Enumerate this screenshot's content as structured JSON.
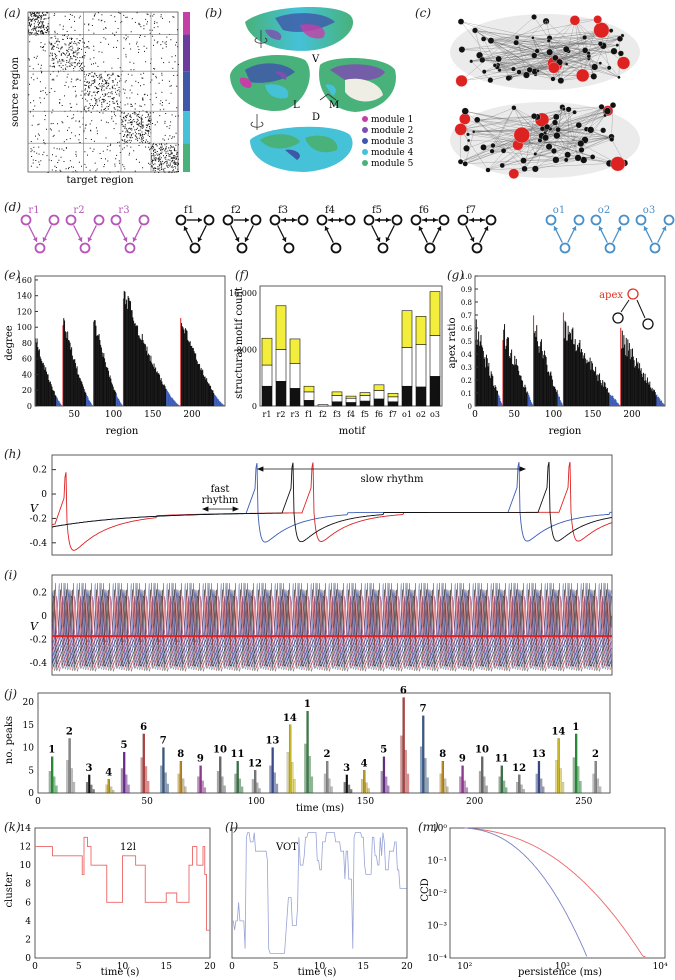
{
  "labels": {
    "a": "(a)",
    "b": "(b)",
    "c": "(c)",
    "d": "(d)",
    "e": "(e)",
    "f": "(f)",
    "g": "(g)",
    "h": "(h)",
    "i": "(i)",
    "j": "(j)",
    "k": "(k)",
    "l": "(l)",
    "m": "(m)"
  },
  "panel_a": {
    "xlabel": "target region",
    "ylabel": "source region",
    "module_colors": [
      "#c63fa6",
      "#6b3c9c",
      "#3f57a8",
      "#45c1d8",
      "#48b27a"
    ]
  },
  "panel_b": {
    "view_labels": [
      "V",
      "L",
      "M",
      "D"
    ],
    "legend": [
      {
        "label": "module 1",
        "color": "#c63fa6"
      },
      {
        "label": "module 2",
        "color": "#7c4fb0"
      },
      {
        "label": "module 3",
        "color": "#3f57a8"
      },
      {
        "label": "module 4",
        "color": "#45c1d8"
      },
      {
        "label": "module 5",
        "color": "#48b27a"
      }
    ]
  },
  "panel_d": {
    "motifs_left": [
      "r1",
      "r2",
      "r3"
    ],
    "motifs_mid": [
      "f1",
      "f2",
      "f3",
      "f4",
      "f5",
      "f6",
      "f7"
    ],
    "motifs_right": [
      "o1",
      "o2",
      "o3"
    ],
    "color_left": "#b855b8",
    "color_right": "#4a90c8"
  },
  "panel_e": {
    "ylabel": "degree",
    "xlabel": "region",
    "yticks": [
      "0",
      "20",
      "40",
      "60",
      "80",
      "100",
      "120",
      "140",
      "160"
    ],
    "xticks": [
      "50",
      "100",
      "150",
      "200"
    ]
  },
  "panel_f": {
    "ylabel": "structural motif count",
    "xlabel": "motif",
    "yticks": [
      "0",
      "8000",
      "16 000"
    ],
    "motifs": [
      "r1",
      "r2",
      "r3",
      "f1",
      "f2",
      "f3",
      "f4",
      "f5",
      "f6",
      "f7",
      "o1",
      "o2",
      "o3"
    ]
  },
  "panel_g": {
    "ylabel": "apex ratio",
    "xlabel": "region",
    "apex_label": "apex",
    "yticks": [
      "0",
      "0.1",
      "0.2",
      "0.3",
      "0.4",
      "0.5",
      "0.6",
      "0.7",
      "0.8",
      "0.9",
      "1.0"
    ],
    "xticks": [
      "0",
      "50",
      "100",
      "150",
      "200"
    ]
  },
  "panel_h": {
    "ylabel": "V",
    "yticks": [
      "0.2",
      "0",
      "-0.2",
      "-0.4"
    ],
    "fast_label_1": "fast",
    "fast_label_2": "rhythm",
    "slow_label": "slow rhythm"
  },
  "panel_i": {
    "ylabel": "V",
    "yticks": [
      "0.2",
      "0",
      "-0.2",
      "-0.4"
    ]
  },
  "panel_j": {
    "ylabel": "no. peaks",
    "xlabel": "time (ms)",
    "yticks": [
      "0",
      "5",
      "10",
      "15",
      "20"
    ],
    "xticks": [
      "0",
      "50",
      "100",
      "150",
      "200",
      "250"
    ],
    "cluster_numbers": [
      "1",
      "2",
      "3",
      "4",
      "5",
      "6",
      "7",
      "8",
      "9",
      "10",
      "11",
      "12",
      "13",
      "14",
      "1",
      "2",
      "3",
      "4",
      "5",
      "6",
      "7",
      "8",
      "9",
      "10",
      "11",
      "12",
      "13",
      "14",
      "1",
      "2"
    ]
  },
  "panel_k": {
    "ylabel": "cluster",
    "xlabel": "time (s)",
    "yticks": [
      "0",
      "2",
      "4",
      "6",
      "8",
      "10",
      "12",
      "14"
    ],
    "xticks": [
      "0",
      "5",
      "10",
      "15",
      "20"
    ],
    "title": "12l"
  },
  "panel_l": {
    "xlabel": "time (s)",
    "xticks": [
      "0",
      "5",
      "10",
      "15",
      "20"
    ],
    "title": "VOT"
  },
  "panel_m": {
    "ylabel": "CCD",
    "xlabel": "persistence (ms)",
    "yticks": [
      "10⁰",
      "10⁻¹",
      "10⁻²",
      "10⁻³",
      "10⁻⁴"
    ],
    "xticks": [
      "10²",
      "10³",
      "10⁴"
    ]
  }
}
